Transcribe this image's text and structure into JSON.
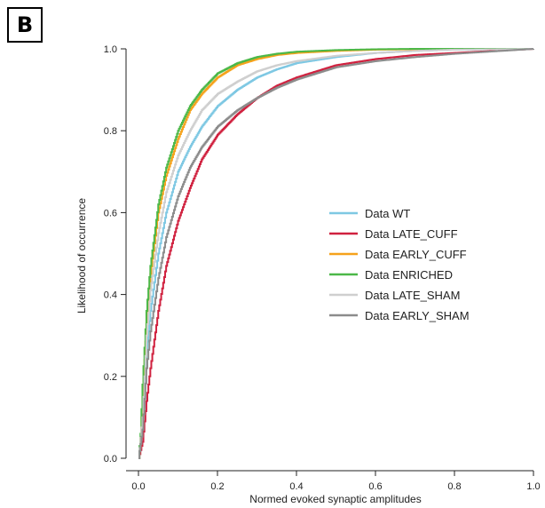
{
  "panel_label": "B",
  "chart_data": {
    "type": "line",
    "title": "",
    "xlabel": "Normed evoked synaptic amplitudes",
    "ylabel": "Likelihood of occurrence",
    "xlim": [
      0,
      1
    ],
    "ylim": [
      0,
      1
    ],
    "xticks": [
      0,
      0.2,
      0.4,
      0.6,
      0.8,
      1
    ],
    "xtick_labels": [
      "0.0",
      "0.2",
      "0.4",
      "0.6",
      "0.8",
      "1.0"
    ],
    "yticks": [
      0,
      0.2,
      0.4,
      0.6,
      0.8,
      1
    ],
    "ytick_labels": [
      "0.0",
      "0.2",
      "0.4",
      "0.6",
      "0.8",
      "1.0"
    ],
    "grid": false,
    "legend_position": "center-right",
    "series": [
      {
        "name": "Data WT",
        "color": "#7ec8e3",
        "x": [
          0.0,
          0.01,
          0.02,
          0.03,
          0.05,
          0.07,
          0.1,
          0.13,
          0.16,
          0.2,
          0.25,
          0.3,
          0.35,
          0.4,
          0.5,
          0.6,
          0.7,
          0.8,
          0.9,
          1.0
        ],
        "y": [
          0.0,
          0.08,
          0.26,
          0.36,
          0.5,
          0.6,
          0.7,
          0.76,
          0.81,
          0.86,
          0.9,
          0.93,
          0.95,
          0.965,
          0.98,
          0.99,
          0.995,
          0.998,
          0.999,
          1.0
        ]
      },
      {
        "name": "Data LATE_CUFF",
        "color": "#d0213f",
        "x": [
          0.0,
          0.01,
          0.02,
          0.03,
          0.05,
          0.07,
          0.1,
          0.13,
          0.16,
          0.2,
          0.25,
          0.3,
          0.35,
          0.4,
          0.5,
          0.6,
          0.7,
          0.8,
          0.9,
          1.0
        ],
        "y": [
          0.0,
          0.04,
          0.14,
          0.22,
          0.36,
          0.47,
          0.58,
          0.66,
          0.73,
          0.79,
          0.84,
          0.88,
          0.91,
          0.93,
          0.96,
          0.975,
          0.985,
          0.99,
          0.995,
          1.0
        ]
      },
      {
        "name": "Data EARLY_CUFF",
        "color": "#f5a21b",
        "x": [
          0.0,
          0.005,
          0.01,
          0.02,
          0.03,
          0.05,
          0.07,
          0.1,
          0.13,
          0.16,
          0.2,
          0.25,
          0.3,
          0.35,
          0.4,
          0.5,
          0.6,
          0.7,
          0.8,
          1.0
        ],
        "y": [
          0.0,
          0.05,
          0.15,
          0.33,
          0.45,
          0.6,
          0.69,
          0.78,
          0.85,
          0.89,
          0.93,
          0.96,
          0.975,
          0.985,
          0.99,
          0.995,
          0.998,
          0.999,
          1.0,
          1.0
        ]
      },
      {
        "name": "Data ENRICHED",
        "color": "#4cb848",
        "x": [
          0.0,
          0.005,
          0.01,
          0.02,
          0.03,
          0.05,
          0.07,
          0.1,
          0.13,
          0.16,
          0.2,
          0.25,
          0.3,
          0.35,
          0.4,
          0.5,
          0.6,
          0.7,
          0.8,
          1.0
        ],
        "y": [
          0.0,
          0.06,
          0.18,
          0.36,
          0.47,
          0.62,
          0.71,
          0.8,
          0.86,
          0.9,
          0.94,
          0.965,
          0.98,
          0.988,
          0.993,
          0.997,
          0.999,
          1.0,
          1.0,
          1.0
        ]
      },
      {
        "name": "Data LATE_SHAM",
        "color": "#cfcfcf",
        "x": [
          0.0,
          0.01,
          0.02,
          0.03,
          0.05,
          0.07,
          0.1,
          0.13,
          0.16,
          0.2,
          0.25,
          0.3,
          0.35,
          0.4,
          0.5,
          0.6,
          0.7,
          0.8,
          0.9,
          1.0
        ],
        "y": [
          0.0,
          0.1,
          0.3,
          0.41,
          0.55,
          0.65,
          0.74,
          0.8,
          0.85,
          0.89,
          0.92,
          0.945,
          0.96,
          0.97,
          0.983,
          0.99,
          0.995,
          0.998,
          0.999,
          1.0
        ]
      },
      {
        "name": "Data EARLY_SHAM",
        "color": "#8c8c8c",
        "x": [
          0.0,
          0.01,
          0.02,
          0.03,
          0.05,
          0.07,
          0.1,
          0.13,
          0.16,
          0.2,
          0.25,
          0.3,
          0.35,
          0.4,
          0.5,
          0.6,
          0.7,
          0.8,
          0.9,
          1.0
        ],
        "y": [
          0.0,
          0.07,
          0.22,
          0.31,
          0.44,
          0.54,
          0.64,
          0.71,
          0.76,
          0.81,
          0.85,
          0.88,
          0.905,
          0.925,
          0.955,
          0.97,
          0.98,
          0.988,
          0.994,
          1.0
        ]
      }
    ]
  }
}
